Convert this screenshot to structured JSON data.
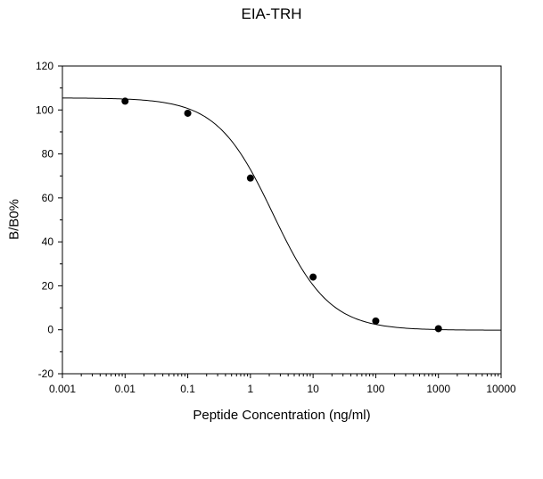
{
  "chart_data": {
    "type": "scatter",
    "title": "EIA-TRH",
    "xlabel": "Peptide Concentration (ng/ml)",
    "ylabel": "B/B0%",
    "x_scale": "log",
    "xlim": [
      0.001,
      10000
    ],
    "ylim": [
      -20,
      120
    ],
    "x_ticks": [
      0.001,
      0.01,
      0.1,
      1,
      10,
      100,
      1000,
      10000
    ],
    "x_tick_labels": [
      "0.001",
      "0.01",
      "0.1",
      "1",
      "10",
      "100",
      "1000",
      "10000"
    ],
    "y_ticks": [
      -20,
      0,
      20,
      40,
      60,
      80,
      100,
      120
    ],
    "y_tick_labels": [
      "-20",
      "0",
      "20",
      "40",
      "60",
      "80",
      "100",
      "120"
    ],
    "grid": false,
    "legend": "none",
    "points": {
      "x": [
        0.01,
        0.1,
        1,
        10,
        100,
        1000
      ],
      "y": [
        104,
        98.5,
        69,
        24,
        4,
        0.5
      ]
    },
    "fit_curve": {
      "type": "four-parameter logistic",
      "top": 105.5,
      "bottom": -0.2,
      "ec50": 2.3,
      "hill": 0.97
    },
    "colors": {
      "marker": "#000000",
      "line": "#000000",
      "axis": "#000000"
    }
  }
}
